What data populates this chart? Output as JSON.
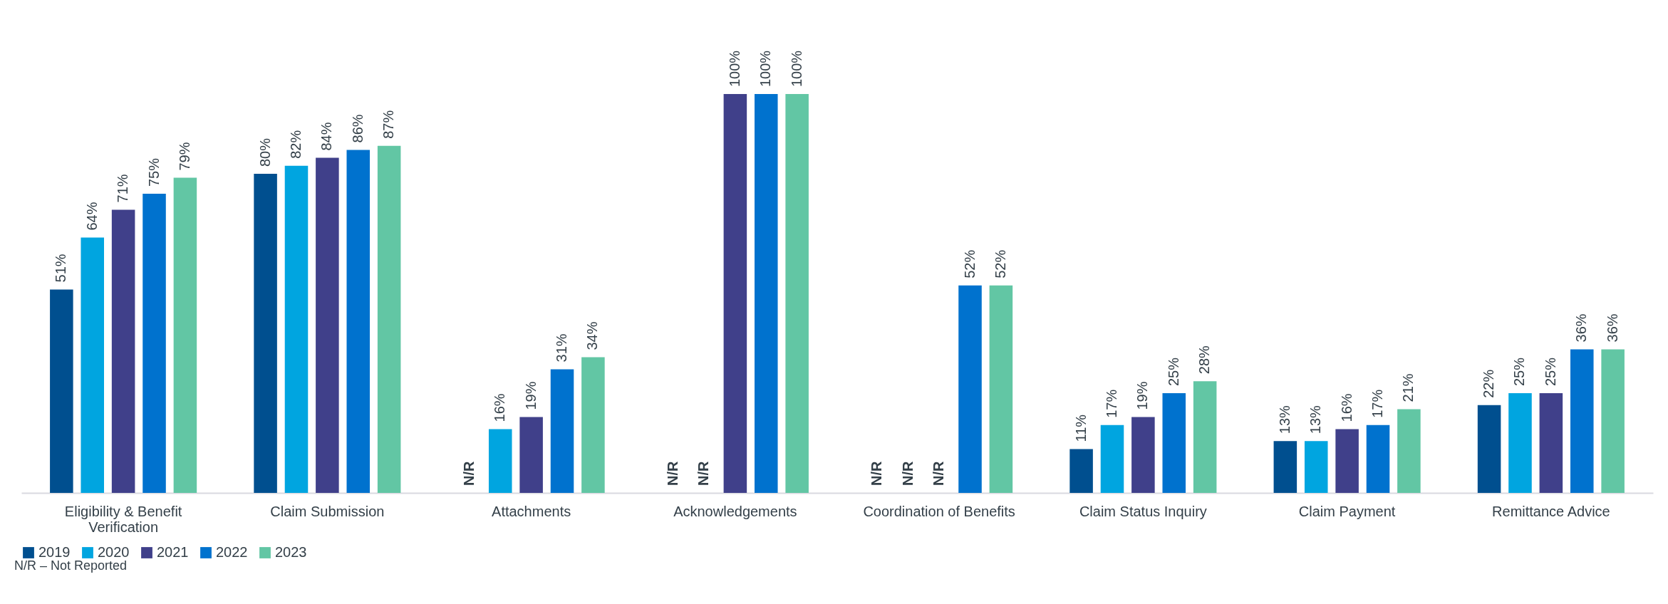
{
  "chart_data": {
    "type": "bar",
    "categories": [
      "Eligibility & Benefit Verification",
      "Claim Submission",
      "Attachments",
      "Acknowledgements",
      "Coordination of Benefits",
      "Claim Status Inquiry",
      "Claim Payment",
      "Remittance Advice"
    ],
    "series": [
      {
        "name": "2019",
        "color": "#004f8f",
        "values": [
          51,
          80,
          null,
          null,
          null,
          11,
          13,
          22
        ],
        "value_labels": [
          "51%",
          "80%",
          "N/R",
          "N/R",
          "N/R",
          "11%",
          "13%",
          "22%"
        ]
      },
      {
        "name": "2020",
        "color": "#00a5e0",
        "values": [
          64,
          82,
          16,
          null,
          null,
          17,
          13,
          25
        ],
        "value_labels": [
          "64%",
          "82%",
          "16%",
          "N/R",
          "N/R",
          "17%",
          "13%",
          "25%"
        ]
      },
      {
        "name": "2021",
        "color": "#40408a",
        "values": [
          71,
          84,
          19,
          100,
          null,
          19,
          16,
          25
        ],
        "value_labels": [
          "71%",
          "84%",
          "19%",
          "100%",
          "N/R",
          "19%",
          "16%",
          "25%"
        ]
      },
      {
        "name": "2022",
        "color": "#0072ce",
        "values": [
          75,
          86,
          31,
          100,
          52,
          25,
          17,
          36
        ],
        "value_labels": [
          "75%",
          "86%",
          "31%",
          "100%",
          "52%",
          "25%",
          "17%",
          "36%"
        ]
      },
      {
        "name": "2023",
        "color": "#62c6a4",
        "values": [
          79,
          87,
          34,
          100,
          52,
          28,
          21,
          36
        ],
        "value_labels": [
          "79%",
          "87%",
          "34%",
          "100%",
          "52%",
          "28%",
          "21%",
          "36%"
        ]
      }
    ],
    "legend": "bottom",
    "annotations": [
      "N/R – Not Reported"
    ]
  }
}
